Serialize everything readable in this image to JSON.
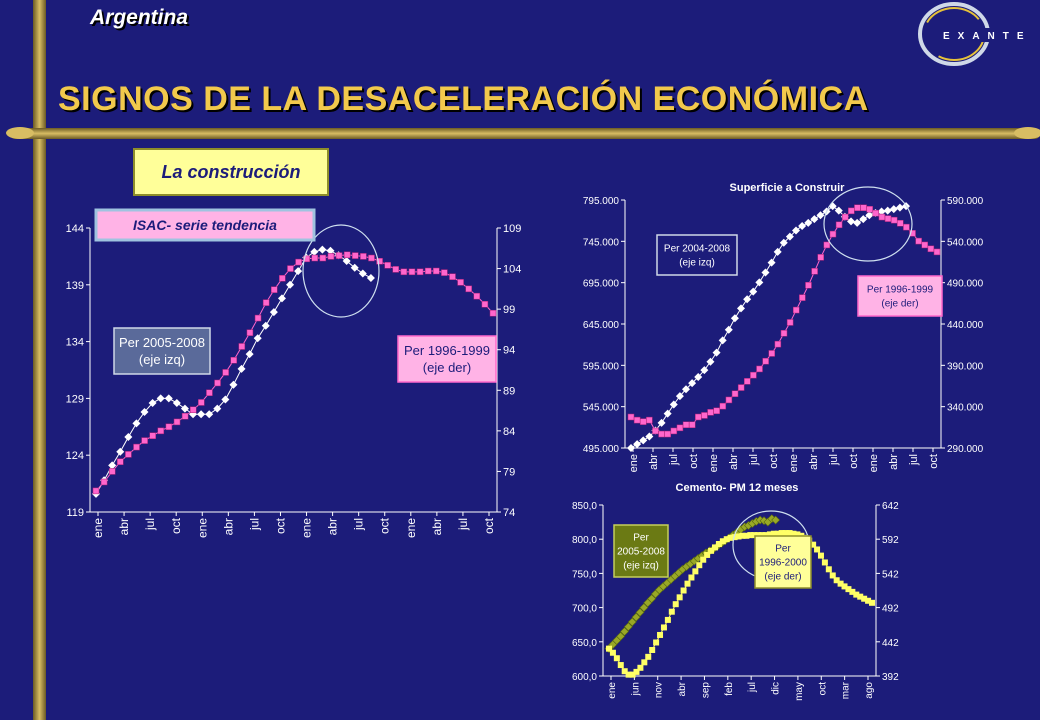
{
  "header": {
    "country": "Argentina",
    "title": "SIGNOS DE LA DESACELERACIÓN ECONÓMICA",
    "section": "La construcción",
    "logo_text": "E X A N T E"
  },
  "colors": {
    "background": "#1c1c7a",
    "title": "#f2c94c",
    "gold": "#c8a646",
    "white_series": "#ffffff",
    "pink_series": "#ff66cc",
    "yellow_series": "#ffff66",
    "olive_series": "#99a826"
  },
  "chart_data": [
    {
      "type": "line",
      "title": "ISAC- serie tendencia",
      "x_tick_labels": [
        "ene",
        "abr",
        "jul",
        "oct",
        "ene",
        "abr",
        "jul",
        "oct",
        "ene",
        "abr",
        "jul",
        "oct",
        "ene",
        "abr",
        "jul",
        "oct"
      ],
      "y_left_ticks": [
        "119",
        "124",
        "129",
        "134",
        "139",
        "144"
      ],
      "y_right_ticks": [
        "74",
        "79",
        "84",
        "89",
        "94",
        "99",
        "104",
        "109"
      ],
      "ylim_left": [
        119,
        144
      ],
      "ylim_right": [
        74,
        109
      ],
      "grid": false,
      "series": [
        {
          "name": "Per 2005-2008 (eje izq)",
          "axis": "left",
          "color": "#ffffff",
          "marker": "diamond",
          "values": [
            120.6,
            121.8,
            123.1,
            124.3,
            125.6,
            126.8,
            127.8,
            128.6,
            129.0,
            129.0,
            128.6,
            128.1,
            127.6,
            127.6,
            127.6,
            128.1,
            128.9,
            130.2,
            131.6,
            132.9,
            134.3,
            135.4,
            136.6,
            137.8,
            139.0,
            140.2,
            141.4,
            141.9,
            142.1,
            142.0,
            141.6,
            141.1,
            140.5,
            140.0,
            139.6
          ]
        },
        {
          "name": "Per 1996-1999 (eje der)",
          "axis": "right",
          "color": "#ff66cc",
          "marker": "square",
          "values": [
            76.6,
            77.7,
            79.0,
            80.2,
            81.1,
            82.0,
            82.8,
            83.4,
            84.0,
            84.5,
            85.1,
            85.8,
            86.6,
            87.5,
            88.7,
            89.9,
            91.2,
            92.7,
            94.4,
            96.1,
            97.9,
            99.8,
            101.4,
            102.8,
            104.0,
            104.8,
            105.2,
            105.3,
            105.3,
            105.5,
            105.6,
            105.7,
            105.6,
            105.5,
            105.3,
            104.9,
            104.4,
            103.9,
            103.6,
            103.6,
            103.6,
            103.7,
            103.7,
            103.5,
            103.0,
            102.3,
            101.5,
            100.6,
            99.6,
            98.5
          ]
        }
      ],
      "annotations": [
        "Per 2005-2008 (eje izq)",
        "Per 1996-1999 (eje der)"
      ]
    },
    {
      "type": "line",
      "title": "Superficie a Construir",
      "x_tick_labels": [
        "ene",
        "abr",
        "jul",
        "oct",
        "ene",
        "abr",
        "jul",
        "oct",
        "ene",
        "abr",
        "jul",
        "oct",
        "ene",
        "abr",
        "jul",
        "oct"
      ],
      "y_left_ticks": [
        "495.000",
        "545.000",
        "595.000",
        "645.000",
        "695.000",
        "745.000",
        "795.000"
      ],
      "y_right_ticks": [
        "290.000",
        "340.000",
        "390.000",
        "440.000",
        "490.000",
        "540.000",
        "590.000"
      ],
      "ylim_left": [
        495000,
        820000
      ],
      "ylim_right": [
        290000,
        610000
      ],
      "grid": false,
      "series": [
        {
          "name": "Per 2004-2008 (eje izq)",
          "axis": "left",
          "color": "#ffffff",
          "marker": "diamond",
          "values": [
            495000,
            500000,
            505000,
            510000,
            518000,
            528000,
            540000,
            552000,
            563000,
            572000,
            580000,
            588000,
            597000,
            608000,
            620000,
            636000,
            650000,
            665000,
            678000,
            690000,
            700000,
            712000,
            725000,
            738000,
            752000,
            764000,
            772000,
            780000,
            786000,
            790000,
            795000,
            800000,
            805000,
            812000,
            806000,
            798000,
            792000,
            790000,
            795000,
            800000,
            803000,
            805000,
            806000,
            808000,
            810000,
            812000
          ]
        },
        {
          "name": "Per 1996-1999 (eje der)",
          "axis": "right",
          "color": "#ff66cc",
          "marker": "square",
          "values": [
            330000,
            326000,
            324000,
            326000,
            312000,
            308000,
            308000,
            312000,
            316000,
            320000,
            320000,
            330000,
            332000,
            336000,
            338000,
            344000,
            352000,
            360000,
            368000,
            376000,
            384000,
            392000,
            402000,
            412000,
            424000,
            438000,
            452000,
            468000,
            484000,
            500000,
            518000,
            536000,
            552000,
            566000,
            578000,
            588000,
            596000,
            600000,
            600000,
            598000,
            593000,
            588000,
            586000,
            584000,
            580000,
            575000,
            567000,
            557000,
            552000,
            547000,
            543000
          ]
        }
      ],
      "annotations": [
        "Per 2004-2008 (eje izq)",
        "Per 1996-1999 (eje der)"
      ]
    },
    {
      "type": "line",
      "title": "Cemento- PM 12 meses",
      "x_tick_labels": [
        "ene",
        "jun",
        "nov",
        "abr",
        "sep",
        "feb",
        "jul",
        "dic",
        "may",
        "oct",
        "mar",
        "ago"
      ],
      "y_left_ticks": [
        "600,0",
        "650,0",
        "700,0",
        "750,0",
        "800,0",
        "850,0"
      ],
      "y_right_ticks": [
        "392",
        "442",
        "492",
        "542",
        "592",
        "642"
      ],
      "ylim_left": [
        600,
        850
      ],
      "ylim_right": [
        392,
        642
      ],
      "grid": false,
      "series": [
        {
          "name": "Per 2005-2008 (eje izq)",
          "axis": "left",
          "color": "#99a826",
          "marker": "diamond",
          "values": [
            640,
            646,
            652,
            658,
            665,
            672,
            679,
            686,
            693,
            700,
            707,
            713,
            720,
            726,
            731,
            736,
            741,
            746,
            751,
            756,
            760,
            764,
            768,
            772,
            776,
            780,
            783,
            786,
            790,
            794,
            798,
            802,
            806,
            810,
            814,
            818,
            820,
            823,
            826,
            828,
            827,
            825,
            830,
            828
          ]
        },
        {
          "name": "Per 1996-2000 (eje der)",
          "axis": "right",
          "color": "#ffff66",
          "marker": "square",
          "values": [
            432,
            426,
            418,
            408,
            399,
            394,
            394,
            398,
            404,
            412,
            420,
            430,
            441,
            452,
            463,
            474,
            486,
            497,
            507,
            517,
            527,
            536,
            545,
            554,
            562,
            569,
            575,
            580,
            585,
            589,
            592,
            594,
            595,
            596,
            597,
            597,
            598,
            598,
            598,
            598,
            598,
            599,
            600,
            600,
            601,
            601,
            601,
            600,
            599,
            597,
            594,
            590,
            584,
            577,
            568,
            558,
            548,
            539,
            532,
            527,
            523,
            519,
            515,
            511,
            508,
            505,
            502,
            499
          ]
        }
      ],
      "annotations": [
        "Per 2005-2008 (eje izq)",
        "Per 1996-2000 (eje der)"
      ]
    }
  ]
}
